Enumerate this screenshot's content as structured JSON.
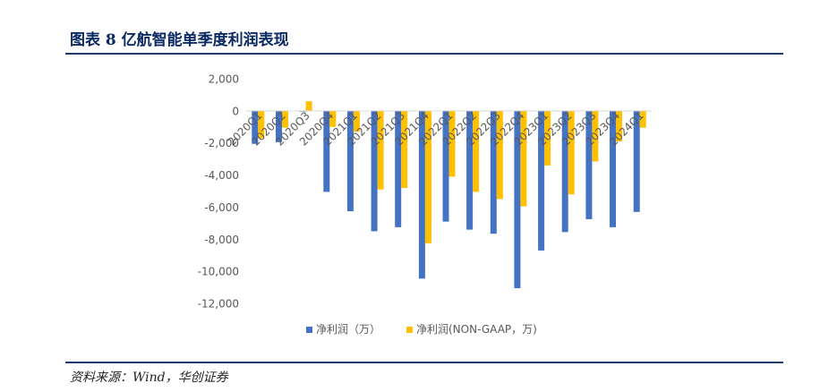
{
  "header": {
    "title": "图表 8   亿航智能单季度利润表现"
  },
  "footer": {
    "source": "资料来源：Wind，华创证券"
  },
  "colors": {
    "net_profit": "#4472C4",
    "non_gaap": "#FFC000",
    "axis": "#d9d9d9",
    "text": "#595959"
  },
  "chart_data": {
    "type": "bar",
    "categories": [
      "2020Q1",
      "2020Q2",
      "2020Q3",
      "2020Q4",
      "2021Q1",
      "2021Q2",
      "2021Q3",
      "2021Q4",
      "2022Q1",
      "2022Q2",
      "2022Q3",
      "2022Q4",
      "2023Q1",
      "2023Q2",
      "2023Q3",
      "2023Q4",
      "2024Q1"
    ],
    "series": [
      {
        "name": "净利润（万）",
        "values": [
          -2050,
          -1950,
          -50,
          -5050,
          -6250,
          -7500,
          -7250,
          -10450,
          -6900,
          -7400,
          -7650,
          -11050,
          -8700,
          -7550,
          -6750,
          -7250,
          -6300
        ]
      },
      {
        "name": "净利润(NON-GAAP，万)",
        "values": [
          -1700,
          -1050,
          600,
          -1000,
          -1300,
          -4900,
          -4800,
          -8250,
          -4100,
          -5050,
          -5500,
          -5950,
          -3400,
          -5200,
          -3150,
          -1900,
          -1050
        ]
      }
    ],
    "ylim": [
      -12000,
      2000
    ],
    "yticks": [
      "2,000",
      "0",
      "-2,000",
      "-4,000",
      "-6,000",
      "-8,000",
      "-10,000",
      "-12,000"
    ],
    "grid": false,
    "legend": "bottom"
  }
}
